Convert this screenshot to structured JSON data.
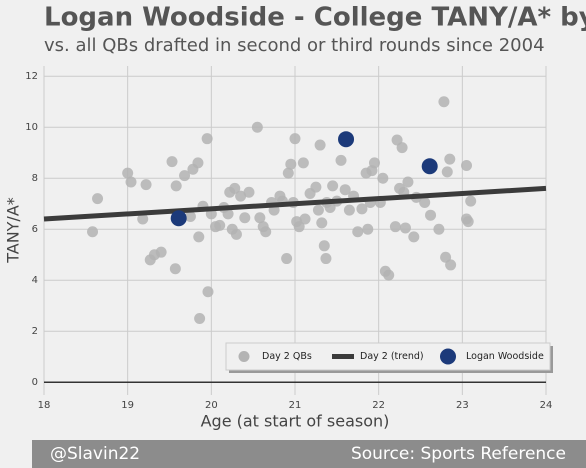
{
  "chart_data": {
    "type": "scatter",
    "title": "Logan Woodside - College TANY/A* by Age",
    "subtitle": "vs. all QBs drafted in second or third rounds since 2004",
    "x_label": "Age (at start of season)",
    "y_label": "TANY/A*",
    "xlim": [
      18,
      24
    ],
    "ylim": [
      -0.5,
      12.4
    ],
    "xticks": [
      18,
      19,
      20,
      21,
      22,
      23,
      24
    ],
    "yticks": [
      0,
      2,
      4,
      6,
      8,
      10,
      12
    ],
    "grid": true,
    "legend": "lower right",
    "series": [
      {
        "name": "Day 2 QBs",
        "type": "scatter",
        "color": "#b3b3b3",
        "x": [
          18.58,
          18.64,
          19.0,
          19.04,
          19.18,
          19.22,
          19.27,
          19.32,
          19.4,
          19.53,
          19.57,
          19.58,
          19.68,
          19.75,
          19.78,
          19.84,
          19.85,
          19.86,
          19.9,
          19.95,
          19.96,
          20.0,
          20.05,
          20.1,
          20.15,
          20.2,
          20.22,
          20.25,
          20.28,
          20.3,
          20.35,
          20.4,
          20.45,
          20.55,
          20.58,
          20.62,
          20.65,
          20.72,
          20.75,
          20.82,
          20.85,
          20.9,
          20.92,
          20.95,
          20.98,
          21.0,
          21.02,
          21.05,
          21.1,
          21.12,
          21.18,
          21.25,
          21.28,
          21.3,
          21.32,
          21.35,
          21.37,
          21.38,
          21.42,
          21.45,
          21.5,
          21.55,
          21.6,
          21.65,
          21.7,
          21.75,
          21.8,
          21.85,
          21.87,
          21.9,
          21.92,
          21.95,
          22.02,
          22.05,
          22.08,
          22.12,
          22.2,
          22.22,
          22.25,
          22.28,
          22.3,
          22.32,
          22.35,
          22.42,
          22.45,
          22.55,
          22.62,
          22.72,
          22.78,
          22.8,
          22.82,
          22.85,
          22.86,
          23.05,
          23.05,
          23.07,
          23.1
        ],
        "values": [
          5.9,
          7.2,
          8.2,
          7.85,
          6.4,
          7.75,
          4.8,
          5.0,
          5.1,
          8.65,
          4.45,
          7.7,
          8.1,
          6.5,
          8.35,
          8.6,
          5.7,
          2.5,
          6.9,
          9.55,
          3.55,
          6.6,
          6.1,
          6.15,
          6.85,
          6.6,
          7.45,
          6.0,
          7.6,
          5.8,
          7.3,
          6.45,
          7.45,
          10.0,
          6.45,
          6.1,
          5.9,
          7.05,
          6.75,
          7.3,
          7.1,
          4.85,
          8.2,
          8.55,
          7.05,
          9.55,
          6.3,
          6.1,
          8.6,
          6.4,
          7.4,
          7.65,
          6.75,
          9.3,
          6.25,
          5.35,
          4.85,
          7.05,
          6.85,
          7.7,
          7.1,
          8.7,
          7.55,
          6.75,
          7.3,
          5.9,
          6.8,
          8.2,
          6.0,
          7.05,
          8.3,
          8.6,
          7.05,
          8.0,
          4.35,
          4.2,
          6.1,
          9.5,
          7.6,
          9.2,
          7.45,
          6.05,
          7.85,
          5.7,
          7.25,
          7.05,
          6.55,
          6.0,
          11.0,
          4.9,
          8.25,
          8.75,
          4.6,
          8.5,
          6.4,
          6.3,
          7.1
        ]
      },
      {
        "name": "Day 2 (trend)",
        "type": "line",
        "color": "#3b3b3b",
        "x": [
          18,
          24
        ],
        "values": [
          6.4,
          7.6
        ]
      },
      {
        "name": "Logan Woodside",
        "type": "scatter",
        "color": "#1c3a7a",
        "x": [
          19.61,
          21.61,
          22.61
        ],
        "values": [
          6.43,
          9.53,
          8.47
        ]
      }
    ]
  },
  "footer": {
    "left": "@Slavin22",
    "right": "Source: Sports Reference"
  }
}
